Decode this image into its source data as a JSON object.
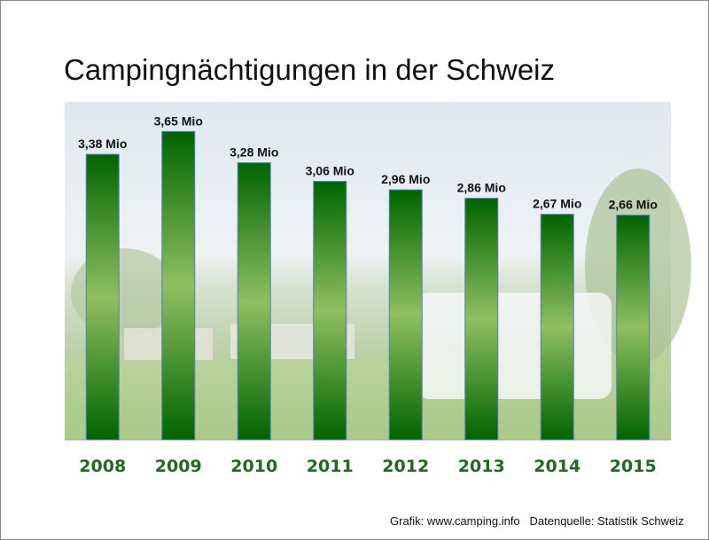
{
  "chart_data": {
    "type": "bar",
    "title": "Campingnächtigungen in der Schweiz",
    "categories": [
      "2008",
      "2009",
      "2010",
      "2011",
      "2012",
      "2013",
      "2014",
      "2015"
    ],
    "values": [
      3.38,
      3.65,
      3.28,
      3.06,
      2.96,
      2.86,
      2.67,
      2.66
    ],
    "data_labels": [
      "3,38 Mio",
      "3,65 Mio",
      "3,28 Mio",
      "3,06 Mio",
      "2,96 Mio",
      "2,86 Mio",
      "2,67 Mio",
      "2,66 Mio"
    ],
    "unit": "Mio",
    "xlabel": "",
    "ylabel": "",
    "ylim": [
      0,
      4
    ],
    "grid": false,
    "background": "campsite photo",
    "colors": {
      "bar_dark": "#006400",
      "bar_light": "#8fbf60",
      "bar_edge": "#4f81bd",
      "tick_label": "#1e6b1e"
    }
  },
  "credit": "Grafik: www.camping.info   Datenquelle: Statistik Schweiz"
}
